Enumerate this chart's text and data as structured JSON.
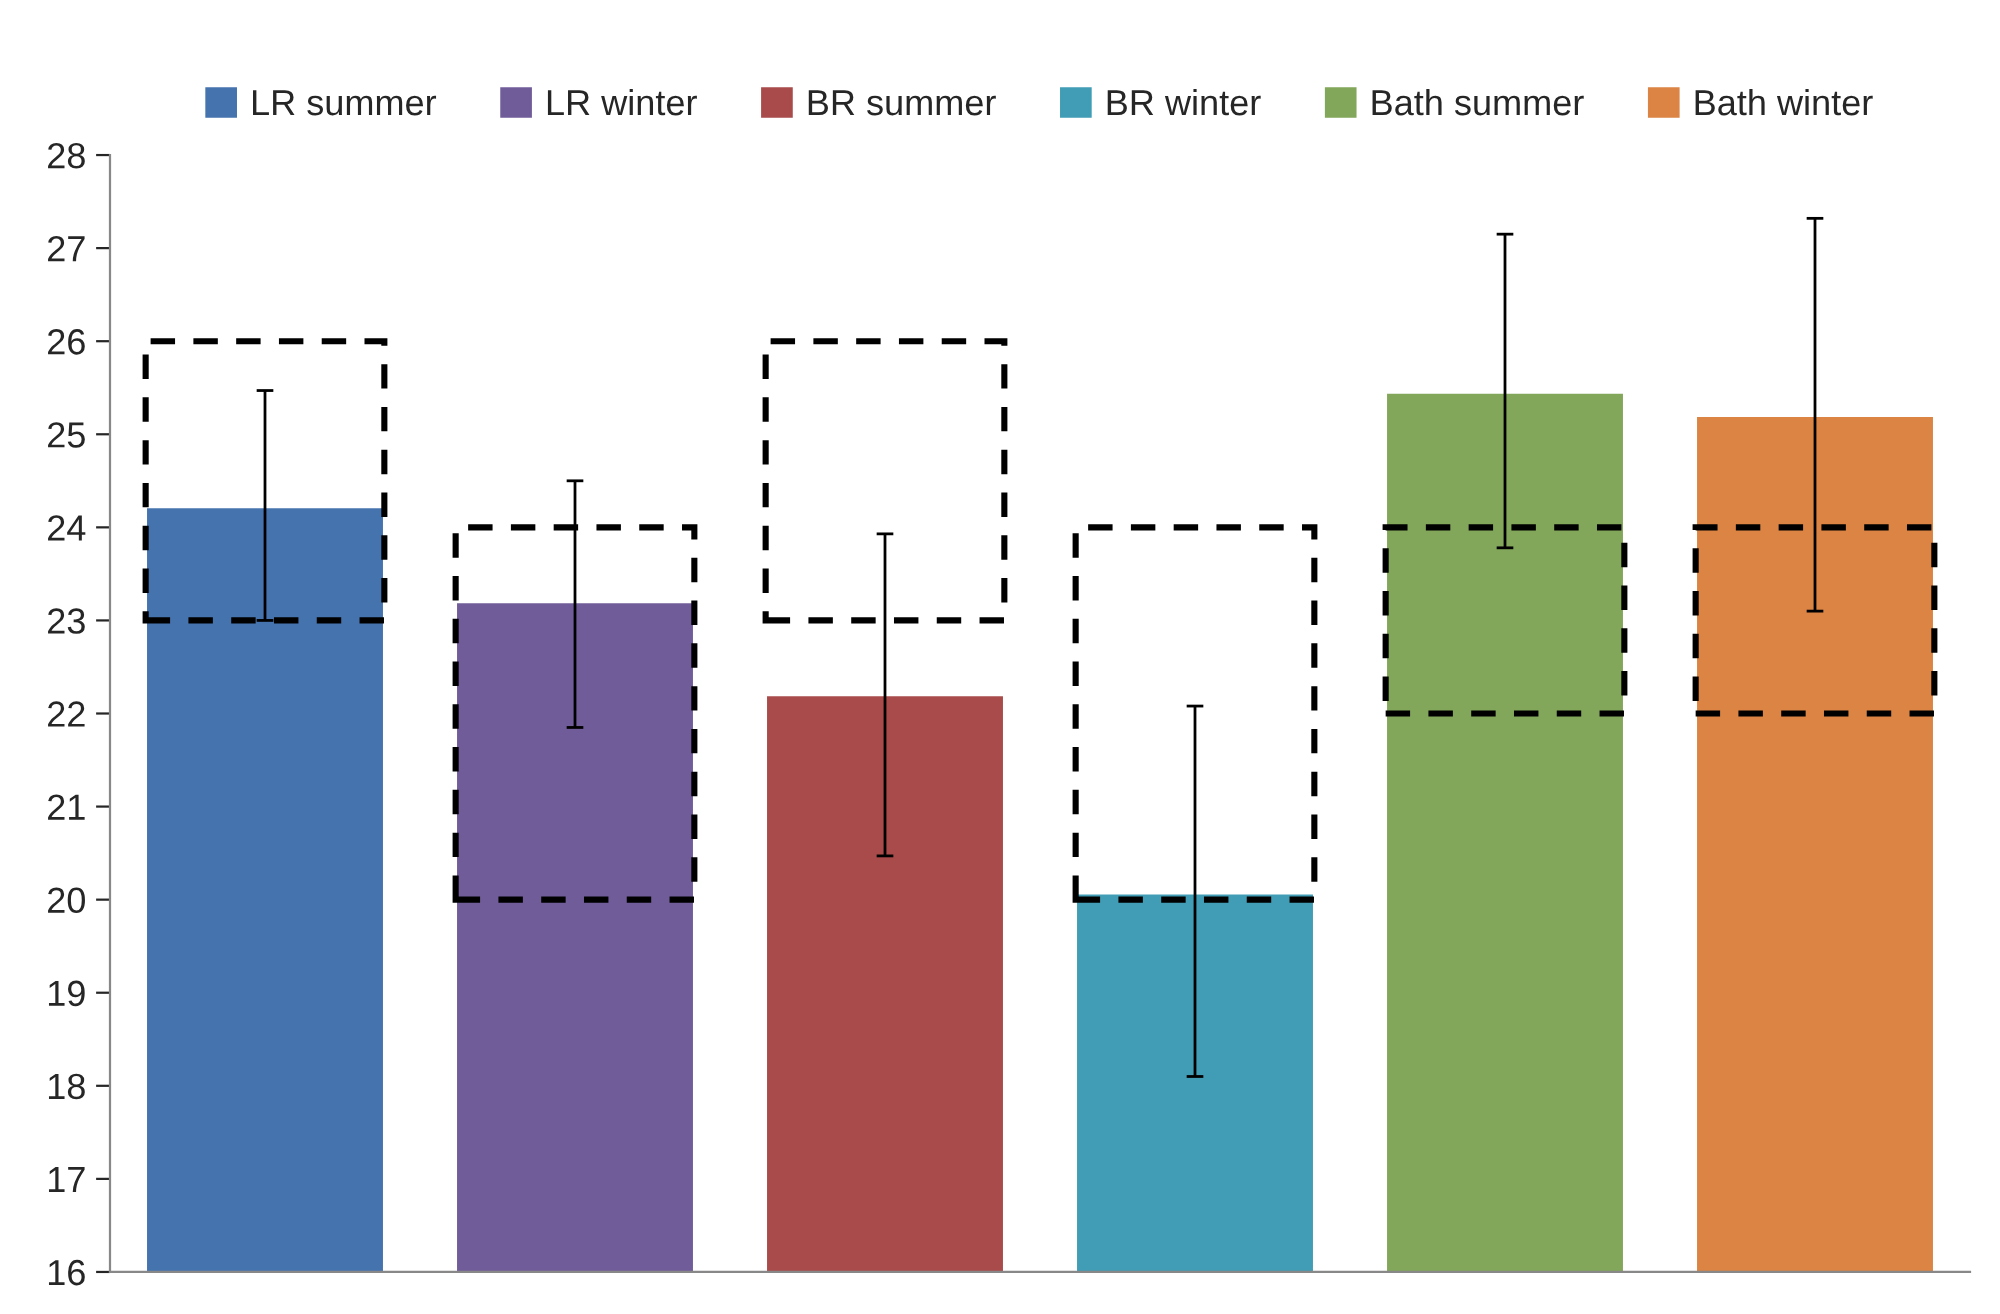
{
  "chart_data": {
    "type": "bar",
    "categories": [
      null,
      null,
      null,
      null,
      null,
      null
    ],
    "series": [
      {
        "name": "LR summer",
        "color": "#4573ae",
        "values": [
          24.22,
          null,
          null,
          null,
          null,
          null
        ],
        "errors": [
          [
            23.0,
            25.47
          ],
          null,
          null,
          null,
          null,
          null
        ]
      },
      {
        "name": "LR winter",
        "color": "#715c9a",
        "values": [
          null,
          23.2,
          null,
          null,
          null,
          null
        ],
        "errors": [
          null,
          [
            21.85,
            24.5
          ],
          null,
          null,
          null,
          null
        ]
      },
      {
        "name": "BR summer",
        "color": "#a84b4a",
        "values": [
          null,
          null,
          22.2,
          null,
          null,
          null
        ],
        "errors": [
          null,
          null,
          [
            20.47,
            23.93
          ],
          null,
          null,
          null
        ]
      },
      {
        "name": "BR winter",
        "color": "#409db5",
        "values": [
          null,
          null,
          null,
          20.07,
          null,
          null
        ],
        "errors": [
          null,
          null,
          null,
          [
            18.1,
            22.08
          ],
          null,
          null
        ]
      },
      {
        "name": "Bath summer",
        "color": "#83a75a",
        "values": [
          null,
          null,
          null,
          null,
          25.45,
          null
        ],
        "errors": [
          null,
          null,
          null,
          null,
          [
            23.78,
            27.15
          ],
          null
        ]
      },
      {
        "name": "Bath winter",
        "color": "#db8444",
        "values": [
          null,
          null,
          null,
          null,
          null,
          25.2
        ],
        "errors": [
          null,
          null,
          null,
          null,
          null,
          [
            23.1,
            27.32
          ]
        ]
      },
      {
        "color": "#000000",
        "line_style": "dashed",
        "base": [
          23,
          20,
          23,
          20,
          22,
          22
        ],
        "values": [
          3,
          4,
          3,
          4,
          2,
          2
        ]
      }
    ],
    "ylim": [
      16,
      28
    ],
    "yticks": [
      16,
      17,
      18,
      19,
      20,
      21,
      22,
      23,
      24,
      25,
      26,
      27,
      28
    ],
    "grid": false,
    "legend": "top"
  }
}
